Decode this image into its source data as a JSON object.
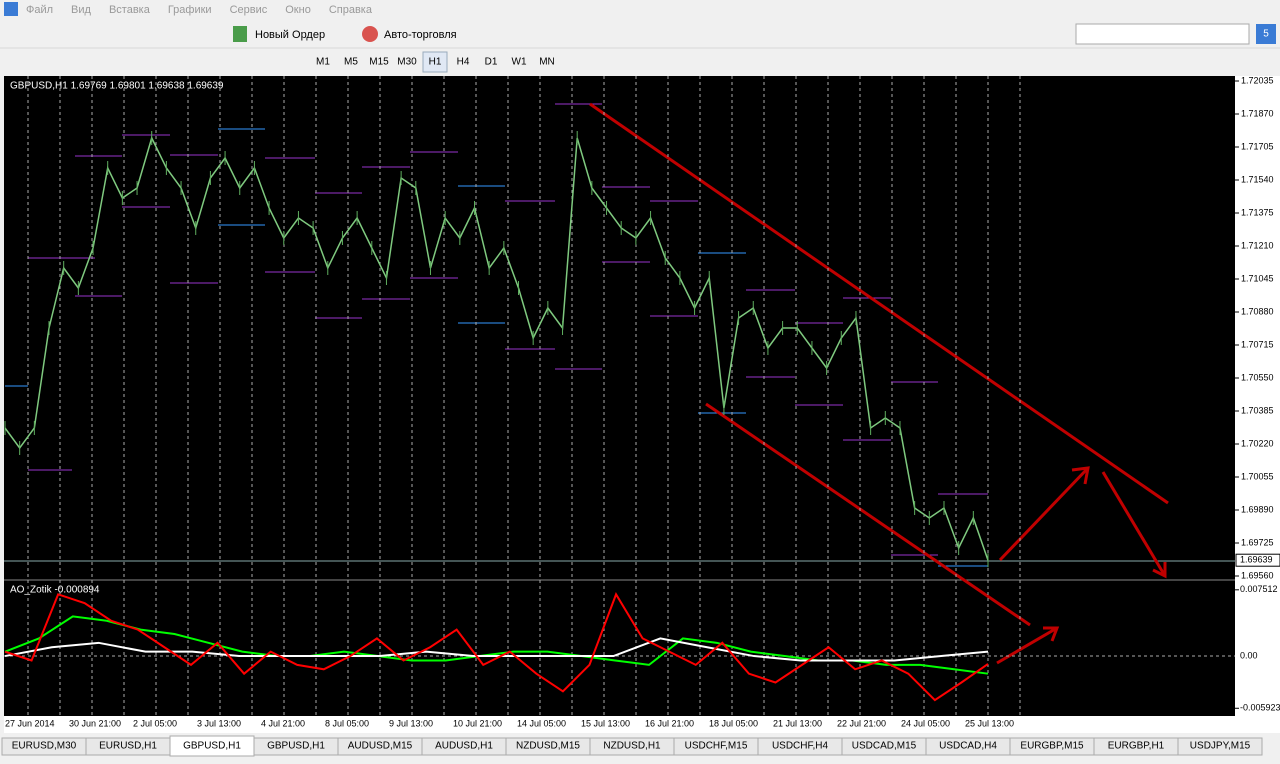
{
  "menu": [
    "Файл",
    "Вид",
    "Вставка",
    "Графики",
    "Сервис",
    "Окно",
    "Справка"
  ],
  "toolbar": {
    "new_order": "Новый Ордер",
    "auto_trading": "Авто-торговля"
  },
  "timeframes": [
    "M1",
    "M5",
    "M15",
    "M30",
    "H1",
    "H4",
    "D1",
    "W1",
    "MN"
  ],
  "search_button": "5",
  "chart": {
    "symbol_info": "GBPUSD,H1  1.69769 1.69801 1.69638 1.69639",
    "ylim": [
      1.6954,
      1.7206
    ],
    "price_ticks": [
      {
        "value": 1.72035,
        "label": "1.72035"
      },
      {
        "value": 1.7187,
        "label": "1.71870"
      },
      {
        "value": 1.71705,
        "label": "1.71705"
      },
      {
        "value": 1.7154,
        "label": "1.71540"
      },
      {
        "value": 1.71375,
        "label": "1.71375"
      },
      {
        "value": 1.7121,
        "label": "1.71210"
      },
      {
        "value": 1.71045,
        "label": "1.71045"
      },
      {
        "value": 1.7088,
        "label": "1.70880"
      },
      {
        "value": 1.70715,
        "label": "1.70715"
      },
      {
        "value": 1.7055,
        "label": "1.70550"
      },
      {
        "value": 1.70385,
        "label": "1.70385"
      },
      {
        "value": 1.7022,
        "label": "1.70220"
      },
      {
        "value": 1.70055,
        "label": "1.70055"
      },
      {
        "value": 1.6989,
        "label": "1.69890"
      },
      {
        "value": 1.69725,
        "label": "1.69725"
      },
      {
        "value": 1.6956,
        "label": "1.69560"
      }
    ],
    "current_price": 1.69639,
    "price_values": [
      1.703,
      1.702,
      1.703,
      1.708,
      1.711,
      1.71,
      1.712,
      1.716,
      1.7145,
      1.715,
      1.7175,
      1.716,
      1.715,
      1.713,
      1.7155,
      1.7165,
      1.715,
      1.716,
      1.714,
      1.7125,
      1.7135,
      1.713,
      1.711,
      1.7125,
      1.7135,
      1.712,
      1.7105,
      1.7155,
      1.715,
      1.711,
      1.7135,
      1.7125,
      1.714,
      1.711,
      1.712,
      1.71,
      1.7075,
      1.709,
      1.708,
      1.7175,
      1.715,
      1.714,
      1.713,
      1.7125,
      1.7135,
      1.7115,
      1.7105,
      1.709,
      1.7105,
      1.704,
      1.7085,
      1.709,
      1.707,
      1.708,
      1.708,
      1.707,
      1.706,
      1.7075,
      1.7085,
      1.703,
      1.7035,
      1.703,
      1.699,
      1.6985,
      1.699,
      1.697,
      1.6985,
      1.69639
    ],
    "time_labels": [
      "27 Jun 2014",
      "30 Jun 21:00",
      "2 Jul 05:00",
      "3 Jul 13:00",
      "4 Jul 21:00",
      "8 Jul 05:00",
      "9 Jul 13:00",
      "10 Jul 21:00",
      "14 Jul 05:00",
      "15 Jul 13:00",
      "16 Jul 21:00",
      "18 Jul 05:00",
      "21 Jul 13:00",
      "22 Jul 21:00",
      "24 Jul 05:00",
      "25 Jul 13:00"
    ],
    "indicator": {
      "label": "AO_Zotik -0.000894",
      "ylim": [
        -0.0068,
        0.0084
      ],
      "ticks": [
        0.007512,
        {
          "value": 0,
          "label": "0.00"
        },
        -0.005923
      ],
      "series": [
        {
          "color": "#00ff00",
          "values": [
            0.0005,
            0.002,
            0.0045,
            0.004,
            0.003,
            0.0025,
            0.0015,
            0.0005,
            0,
            0,
            0.0005,
            0,
            -0.0005,
            -0.0005,
            0,
            0.0005,
            0.0005,
            0,
            -0.0005,
            -0.001,
            0.002,
            0.0015,
            0.0005,
            0,
            -0.0005,
            -0.0005,
            -0.001,
            -0.001,
            -0.0015,
            -0.002
          ]
        },
        {
          "color": "#ffffff",
          "values": [
            0,
            0.001,
            0.0015,
            0.0005,
            0.0005,
            0,
            0,
            0,
            0,
            0.0005,
            0,
            0,
            0,
            0,
            0.002,
            0.001,
            0,
            -0.0005,
            -0.0005,
            -0.0005,
            0,
            0.0005
          ]
        },
        {
          "color": "#ff0000",
          "values": [
            0.0005,
            -0.0005,
            0.007,
            0.006,
            0.004,
            0.003,
            0.001,
            -0.001,
            0.0015,
            -0.002,
            0.0005,
            -0.001,
            -0.0015,
            0,
            0.002,
            -0.0005,
            0.001,
            0.003,
            -0.001,
            0.0005,
            -0.002,
            -0.004,
            -0.001,
            0.007,
            0.002,
            0.0005,
            -0.001,
            0.0015,
            -0.002,
            -0.003,
            -0.001,
            0.001,
            -0.0015,
            -0.0005,
            -0.002,
            -0.005,
            -0.003,
            -0.000894
          ]
        }
      ]
    }
  },
  "tabs": [
    "EURUSD,M30",
    "EURUSD,H1",
    "GBPUSD,H1",
    "GBPUSD,H1",
    "AUDUSD,M15",
    "AUDUSD,H1",
    "NZDUSD,M15",
    "NZDUSD,H1",
    "USDCHF,M15",
    "USDCHF,H4",
    "USDCAD,M15",
    "USDCAD,H4",
    "EURGBP,M15",
    "EURGBP,H1",
    "USDJPY,M15"
  ],
  "active_tab": 2
}
